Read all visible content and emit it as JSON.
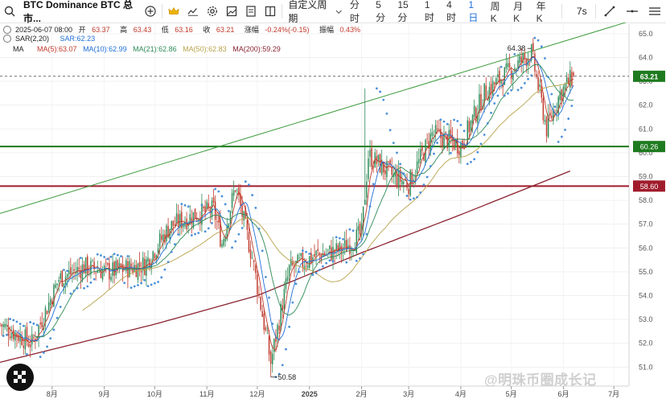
{
  "toolbar": {
    "symbol": "BTC Dominance BTC 总市...",
    "custom_period": "自定义周期",
    "intervals": [
      "分时",
      "5分",
      "15分",
      "1时",
      "4时",
      "1日",
      "周K",
      "月K",
      "年K"
    ],
    "active_interval": "1日",
    "seconds": "7s"
  },
  "legend": {
    "date": "2025-06-07 08:00",
    "open_label": "开",
    "open": "63.37",
    "high_label": "高",
    "high": "63.43",
    "low_label": "低",
    "low": "63.16",
    "close_label": "收",
    "close": "63.21",
    "change_label": "涨幅",
    "change": "-0.24%(-0.15)",
    "amp_label": "振幅",
    "amp": "0.43%",
    "sar_label": "SAR(2,20)",
    "sar_value": "SAR:62.23",
    "ma_label": "MA",
    "ma5": "MA(5):63.07",
    "ma10": "MA(10):62.99",
    "ma21": "MA(21):62.86",
    "ma50": "MA(50):62.83",
    "ma200": "MA(200):59.29"
  },
  "colors": {
    "up": "#2e8b57",
    "down": "#c0392b",
    "ma5": "#c0392b",
    "ma10": "#1e6fd9",
    "ma21": "#2e8b57",
    "ma50": "#b8a24a",
    "ma200": "#8b2330",
    "sar": "#4a90d9",
    "trendline": "#3c9b3c",
    "support_green": "#1e7a1e",
    "support_red": "#a01c2c",
    "last_price_bg": "#1e7a1e"
  },
  "chart_data": {
    "type": "candlestick",
    "title": "BTC Dominance",
    "y_ticks": [
      51.0,
      52.0,
      53.0,
      54.0,
      55.0,
      56.0,
      57.0,
      58.0,
      59.0,
      60.0,
      61.0,
      62.0,
      63.0,
      64.0,
      65.0
    ],
    "ylim": [
      50.2,
      65.4
    ],
    "x_ticks": [
      "8月",
      "9月",
      "10月",
      "11月",
      "12月",
      "2025",
      "2月",
      "3月",
      "4月",
      "5月",
      "6月",
      "7月"
    ],
    "xlim": [
      "2024-07-01",
      "2025-07-10"
    ],
    "horizontal_lines": [
      {
        "label": "60.26",
        "value": 60.26,
        "color": "green"
      },
      {
        "label": "58.60",
        "value": 58.6,
        "color": "red"
      }
    ],
    "last_price": {
      "label": "63.21",
      "value": 63.21
    },
    "annotations": [
      {
        "text": "64.38",
        "value": 64.38,
        "date": "2025-05-13"
      },
      {
        "text": "50.58",
        "value": 50.58,
        "date": "2024-12-09"
      }
    ],
    "trendline": {
      "start": {
        "date": "2024-07-01",
        "value": 57.45
      },
      "end": {
        "date": "2025-07-08",
        "value": 65.47
      }
    },
    "price_path": [
      {
        "date": "2024-07-01",
        "value": 52.8
      },
      {
        "date": "2024-07-20",
        "value": 52.0
      },
      {
        "date": "2024-08-05",
        "value": 54.7
      },
      {
        "date": "2024-08-20",
        "value": 55.2
      },
      {
        "date": "2024-09-05",
        "value": 55.0
      },
      {
        "date": "2024-09-25",
        "value": 55.3
      },
      {
        "date": "2024-10-10",
        "value": 56.9
      },
      {
        "date": "2024-10-25",
        "value": 57.4
      },
      {
        "date": "2024-11-05",
        "value": 57.6
      },
      {
        "date": "2024-11-10",
        "value": 56.2
      },
      {
        "date": "2024-11-18",
        "value": 58.6
      },
      {
        "date": "2024-11-28",
        "value": 55.6
      },
      {
        "date": "2024-12-09",
        "value": 51.2
      },
      {
        "date": "2024-12-20",
        "value": 55.1
      },
      {
        "date": "2025-01-05",
        "value": 55.7
      },
      {
        "date": "2025-01-20",
        "value": 55.9
      },
      {
        "date": "2025-02-01",
        "value": 56.6
      },
      {
        "date": "2025-02-05",
        "value": 59.9
      },
      {
        "date": "2025-02-20",
        "value": 59.0
      },
      {
        "date": "2025-03-01",
        "value": 58.7
      },
      {
        "date": "2025-03-15",
        "value": 60.8
      },
      {
        "date": "2025-04-01",
        "value": 60.3
      },
      {
        "date": "2025-04-15",
        "value": 62.5
      },
      {
        "date": "2025-05-01",
        "value": 63.5
      },
      {
        "date": "2025-05-13",
        "value": 64.2
      },
      {
        "date": "2025-05-22",
        "value": 61.0
      },
      {
        "date": "2025-05-30",
        "value": 62.5
      },
      {
        "date": "2025-06-07",
        "value": 63.21
      }
    ],
    "ma200_path": [
      {
        "date": "2024-07-01",
        "value": 51.2
      },
      {
        "date": "2024-10-01",
        "value": 52.8
      },
      {
        "date": "2024-12-01",
        "value": 54.0
      },
      {
        "date": "2025-02-01",
        "value": 55.8
      },
      {
        "date": "2025-04-01",
        "value": 57.4
      },
      {
        "date": "2025-06-07",
        "value": 59.29
      }
    ],
    "series": [
      {
        "name": "MA(5)",
        "last": 63.07
      },
      {
        "name": "MA(10)",
        "last": 62.99
      },
      {
        "name": "MA(21)",
        "last": 62.86
      },
      {
        "name": "MA(50)",
        "last": 62.83
      },
      {
        "name": "MA(200)",
        "last": 59.29
      },
      {
        "name": "SAR(2,20)",
        "last": 62.23
      }
    ]
  },
  "watermark": "@明珠币圈成长记"
}
